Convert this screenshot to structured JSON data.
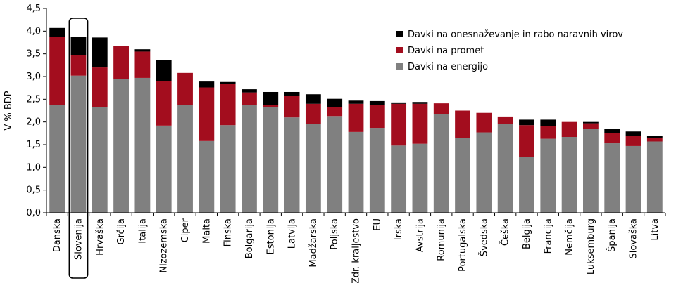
{
  "chart_data": {
    "type": "bar",
    "stacked": true,
    "title": "",
    "xlabel": "",
    "ylabel": "V % BDP",
    "ylim": [
      0,
      4.5
    ],
    "yticks": [
      "0,0",
      "0,5",
      "1,0",
      "1,5",
      "2,0",
      "2,5",
      "3,0",
      "3,5",
      "4,0",
      "4,5"
    ],
    "grid": false,
    "legend_position": "top-right",
    "highlighted_category": "Slovenija",
    "categories": [
      "Danska",
      "Slovenija",
      "Hrvaška",
      "Grčija",
      "Italija",
      "Nizozemska",
      "Ciper",
      "Malta",
      "Finska",
      "Bolgarija",
      "Estonija",
      "Latvija",
      "Madžarska",
      "Poljska",
      "Zdr. kraljestvo",
      "EU",
      "Irska",
      "Avstrija",
      "Romunija",
      "Portugalska",
      "Švedska",
      "Češka",
      "Belgija",
      "Francija",
      "Nemčija",
      "Luksemburg",
      "Španija",
      "Slovaška",
      "Litva"
    ],
    "series": [
      {
        "name": "Davki na energijo",
        "color": "#808080",
        "values": [
          2.38,
          3.02,
          2.33,
          2.95,
          2.97,
          1.92,
          2.38,
          1.58,
          1.93,
          2.38,
          2.33,
          2.1,
          1.95,
          2.13,
          1.78,
          1.87,
          1.48,
          1.52,
          2.17,
          1.65,
          1.77,
          1.95,
          1.23,
          1.63,
          1.67,
          1.85,
          1.53,
          1.47,
          1.57
        ]
      },
      {
        "name": "Davki na promet",
        "color": "#a30d1e",
        "values": [
          1.49,
          0.45,
          0.87,
          0.73,
          0.58,
          0.98,
          0.7,
          1.18,
          0.91,
          0.27,
          0.05,
          0.48,
          0.45,
          0.2,
          0.62,
          0.51,
          0.92,
          0.88,
          0.24,
          0.6,
          0.43,
          0.17,
          0.7,
          0.28,
          0.33,
          0.12,
          0.23,
          0.22,
          0.07
        ]
      },
      {
        "name": "Davki na onesnaževanje in rabo naravnih virov",
        "color": "#000000",
        "values": [
          0.2,
          0.41,
          0.66,
          0.0,
          0.05,
          0.47,
          0.0,
          0.13,
          0.04,
          0.07,
          0.28,
          0.08,
          0.21,
          0.18,
          0.07,
          0.08,
          0.03,
          0.04,
          0.0,
          0.0,
          0.0,
          0.0,
          0.12,
          0.14,
          0.0,
          0.03,
          0.08,
          0.1,
          0.05
        ]
      }
    ],
    "legend_order": [
      "Davki na onesnaževanje in rabo naravnih virov",
      "Davki na promet",
      "Davki na energijo"
    ]
  }
}
